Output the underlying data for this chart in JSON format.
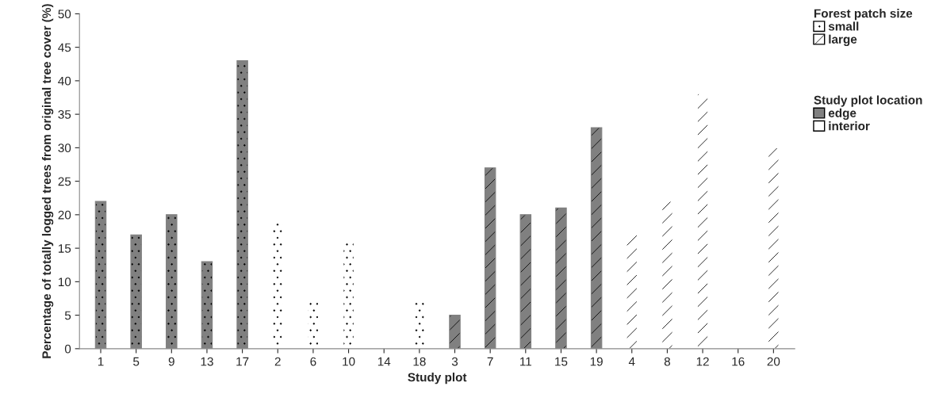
{
  "chart_data": {
    "type": "bar",
    "xlabel": "Study plot",
    "ylabel": "Percentage of totally logged trees from original tree cover (%)",
    "categories": [
      "1",
      "5",
      "9",
      "13",
      "17",
      "2",
      "6",
      "10",
      "14",
      "18",
      "3",
      "7",
      "11",
      "15",
      "19",
      "4",
      "8",
      "12",
      "16",
      "20"
    ],
    "legend_title": [
      "Forest patch size",
      "Study plot location"
    ],
    "series": [
      {
        "name": "small",
        "color": "#ffffff",
        "values": [
          22,
          17,
          20,
          13,
          43,
          19,
          7,
          16,
          0,
          7,
          null,
          null,
          null,
          null,
          null,
          null,
          null,
          null,
          null,
          null
        ],
        "colors": [
          "#808080",
          "#808080",
          "#808080",
          "#808080",
          "#808080",
          "#ffffff",
          "#ffffff",
          "#ffffff",
          "#ffffff",
          "#ffffff",
          null,
          null,
          null,
          null,
          null,
          null,
          null,
          null,
          null,
          null
        ]
      },
      {
        "name": "large",
        "color": "#ffffff",
        "values": [
          null,
          null,
          null,
          null,
          null,
          null,
          null,
          null,
          null,
          null,
          5,
          27,
          20,
          21,
          33,
          17,
          22,
          38,
          0,
          30
        ],
        "colors": [
          null,
          null,
          null,
          null,
          null,
          null,
          null,
          null,
          null,
          null,
          "#808080",
          "#808080",
          "#808080",
          "#808080",
          "#808080",
          "#ffffff",
          "#ffffff",
          "#ffffff",
          "#ffffff",
          "#ffffff"
        ]
      },
      {
        "name": "edge",
        "color": "#808080",
        "values": [
          null,
          null,
          null,
          null,
          null,
          null,
          null,
          null,
          null,
          null,
          null,
          null,
          null,
          null,
          null,
          null,
          null,
          null,
          null,
          null
        ]
      },
      {
        "name": "interior",
        "color": "#ffffff",
        "values": [
          null,
          null,
          null,
          null,
          null,
          null,
          null,
          null,
          null,
          null,
          null,
          null,
          null,
          null,
          null,
          null,
          null,
          null,
          null,
          null
        ]
      }
    ],
    "ylim": [
      0,
      50
    ],
    "yticks": [
      0,
      5,
      10,
      15,
      20,
      25,
      30,
      35,
      40,
      45,
      50
    ],
    "legend": "top right"
  }
}
